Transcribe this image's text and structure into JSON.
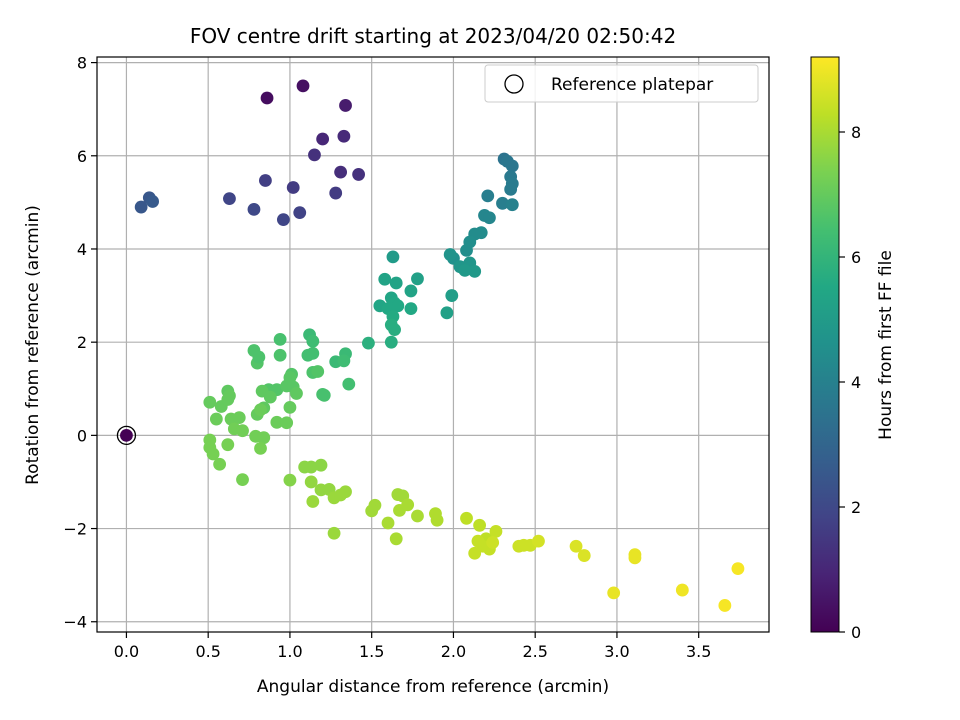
{
  "chart_data": {
    "type": "scatter",
    "title": "FOV centre drift starting at 2023/04/20 02:50:42",
    "xlabel": "Angular distance from reference (arcmin)",
    "ylabel": "Rotation from reference (arcmin)",
    "xlim": [
      -0.18,
      3.93
    ],
    "ylim": [
      -4.22,
      8.12
    ],
    "xticks": [
      "0.0",
      "0.5",
      "1.0",
      "1.5",
      "2.0",
      "2.5",
      "3.0",
      "3.5"
    ],
    "yticks": [
      "−4",
      "−2",
      "0",
      "2",
      "4",
      "6",
      "8"
    ],
    "grid": true,
    "legend": {
      "position": "top-right",
      "entries": [
        "Reference platepar"
      ]
    },
    "colorbar": {
      "label": "Hours from first FF file",
      "colormap": "viridis",
      "range": [
        0,
        9.2
      ],
      "ticks": [
        "0",
        "2",
        "4",
        "6",
        "8"
      ]
    },
    "reference_point": {
      "x": 0.0,
      "y": 0.0
    },
    "points": [
      [
        0.0,
        0.0,
        0.0
      ],
      [
        0.86,
        7.24,
        0.3
      ],
      [
        1.08,
        7.5,
        0.4
      ],
      [
        1.34,
        7.08,
        0.7
      ],
      [
        1.15,
        6.02,
        1.3
      ],
      [
        1.2,
        6.36,
        1.0
      ],
      [
        1.33,
        6.42,
        1.1
      ],
      [
        1.31,
        5.65,
        1.2
      ],
      [
        1.42,
        5.6,
        1.3
      ],
      [
        0.85,
        5.47,
        1.7
      ],
      [
        1.02,
        5.32,
        1.6
      ],
      [
        1.28,
        5.2,
        1.6
      ],
      [
        0.63,
        5.08,
        1.9
      ],
      [
        0.78,
        4.85,
        2.0
      ],
      [
        0.96,
        4.63,
        1.9
      ],
      [
        1.06,
        4.78,
        1.8
      ],
      [
        0.09,
        4.9,
        2.5
      ],
      [
        0.14,
        5.1,
        2.5
      ],
      [
        0.16,
        5.02,
        2.6
      ],
      [
        2.31,
        5.93,
        3.5
      ],
      [
        2.33,
        5.88,
        3.6
      ],
      [
        2.36,
        5.78,
        3.6
      ],
      [
        2.35,
        5.55,
        3.7
      ],
      [
        2.36,
        5.4,
        3.8
      ],
      [
        2.35,
        5.28,
        3.8
      ],
      [
        2.21,
        5.14,
        3.9
      ],
      [
        2.3,
        4.98,
        3.9
      ],
      [
        2.36,
        4.95,
        4.0
      ],
      [
        2.19,
        4.72,
        4.2
      ],
      [
        2.22,
        4.67,
        4.2
      ],
      [
        2.17,
        4.35,
        4.4
      ],
      [
        2.13,
        4.32,
        4.4
      ],
      [
        2.1,
        4.15,
        4.5
      ],
      [
        2.08,
        3.97,
        4.5
      ],
      [
        2.0,
        3.8,
        4.6
      ],
      [
        1.98,
        3.88,
        4.7
      ],
      [
        2.04,
        3.62,
        4.8
      ],
      [
        2.1,
        3.7,
        4.8
      ],
      [
        2.13,
        3.52,
        4.9
      ],
      [
        2.07,
        3.54,
        4.9
      ],
      [
        1.63,
        3.83,
        5.0
      ],
      [
        1.58,
        3.35,
        5.3
      ],
      [
        1.65,
        3.27,
        5.3
      ],
      [
        1.78,
        3.36,
        5.2
      ],
      [
        1.74,
        3.1,
        5.3
      ],
      [
        1.62,
        2.95,
        5.4
      ],
      [
        1.64,
        2.84,
        5.5
      ],
      [
        1.66,
        2.78,
        5.5
      ],
      [
        1.55,
        2.78,
        5.4
      ],
      [
        1.6,
        2.72,
        5.5
      ],
      [
        1.74,
        2.72,
        5.5
      ],
      [
        1.63,
        2.55,
        5.6
      ],
      [
        1.62,
        2.37,
        5.7
      ],
      [
        1.64,
        2.27,
        5.7
      ],
      [
        1.62,
        2.0,
        5.7
      ],
      [
        1.48,
        1.98,
        5.8
      ],
      [
        1.99,
        3.0,
        5.1
      ],
      [
        1.96,
        2.63,
        5.2
      ],
      [
        1.34,
        1.75,
        6.2
      ],
      [
        1.28,
        1.58,
        6.2
      ],
      [
        1.33,
        1.6,
        6.3
      ],
      [
        1.36,
        1.1,
        6.4
      ],
      [
        1.2,
        0.88,
        6.5
      ],
      [
        1.21,
        0.86,
        6.5
      ],
      [
        1.12,
        2.16,
        6.2
      ],
      [
        1.14,
        2.02,
        6.3
      ],
      [
        1.11,
        1.72,
        6.4
      ],
      [
        1.14,
        1.76,
        6.4
      ],
      [
        0.94,
        2.06,
        6.5
      ],
      [
        0.78,
        1.82,
        6.6
      ],
      [
        0.8,
        1.55,
        6.7
      ],
      [
        0.81,
        1.68,
        6.6
      ],
      [
        0.94,
        1.72,
        6.6
      ],
      [
        1.14,
        1.35,
        6.6
      ],
      [
        1.17,
        1.37,
        6.7
      ],
      [
        1.01,
        1.31,
        6.7
      ],
      [
        1.0,
        1.24,
        6.8
      ],
      [
        0.87,
        0.98,
        6.7
      ],
      [
        0.92,
        0.98,
        6.7
      ],
      [
        0.98,
        1.06,
        6.8
      ],
      [
        1.02,
        1.04,
        6.8
      ],
      [
        0.83,
        0.95,
        6.9
      ],
      [
        1.04,
        0.9,
        6.9
      ],
      [
        0.84,
        0.59,
        6.9
      ],
      [
        0.88,
        0.82,
        6.9
      ],
      [
        0.62,
        0.95,
        6.9
      ],
      [
        0.63,
        0.85,
        7.0
      ],
      [
        0.58,
        0.62,
        7.0
      ],
      [
        0.62,
        0.77,
        7.0
      ],
      [
        0.51,
        0.71,
        7.0
      ],
      [
        0.55,
        0.35,
        7.1
      ],
      [
        0.64,
        0.35,
        7.1
      ],
      [
        0.69,
        0.38,
        7.1
      ],
      [
        0.8,
        0.45,
        7.0
      ],
      [
        0.82,
        0.55,
        7.1
      ],
      [
        1.0,
        0.6,
        7.0
      ],
      [
        0.92,
        0.28,
        7.1
      ],
      [
        0.98,
        0.27,
        7.1
      ],
      [
        0.66,
        0.14,
        7.2
      ],
      [
        0.71,
        0.1,
        7.2
      ],
      [
        0.79,
        -0.02,
        7.2
      ],
      [
        0.84,
        -0.05,
        7.2
      ],
      [
        0.82,
        -0.28,
        7.3
      ],
      [
        0.51,
        -0.1,
        7.3
      ],
      [
        0.51,
        -0.26,
        7.3
      ],
      [
        0.53,
        -0.4,
        7.3
      ],
      [
        0.62,
        -0.2,
        7.3
      ],
      [
        0.57,
        -0.62,
        7.3
      ],
      [
        0.71,
        -0.95,
        7.3
      ],
      [
        1.0,
        -0.96,
        7.5
      ],
      [
        1.09,
        -0.68,
        7.6
      ],
      [
        1.13,
        -0.68,
        7.6
      ],
      [
        1.19,
        -0.64,
        7.6
      ],
      [
        1.13,
        -1.0,
        7.7
      ],
      [
        1.19,
        -1.17,
        7.7
      ],
      [
        1.24,
        -1.16,
        7.7
      ],
      [
        1.27,
        -1.34,
        7.8
      ],
      [
        1.31,
        -1.28,
        7.8
      ],
      [
        1.34,
        -1.21,
        7.8
      ],
      [
        1.14,
        -1.42,
        7.8
      ],
      [
        1.27,
        -2.1,
        7.8
      ],
      [
        1.52,
        -1.5,
        7.9
      ],
      [
        1.5,
        -1.62,
        7.9
      ],
      [
        1.66,
        -1.27,
        7.9
      ],
      [
        1.69,
        -1.3,
        7.9
      ],
      [
        1.67,
        -1.61,
        8.0
      ],
      [
        1.72,
        -1.49,
        8.0
      ],
      [
        1.78,
        -1.73,
        8.0
      ],
      [
        1.6,
        -1.88,
        8.0
      ],
      [
        1.65,
        -2.22,
        8.0
      ],
      [
        1.89,
        -1.68,
        8.1
      ],
      [
        1.9,
        -1.82,
        8.1
      ],
      [
        2.08,
        -1.78,
        8.3
      ],
      [
        2.16,
        -1.93,
        8.3
      ],
      [
        2.2,
        -2.22,
        8.3
      ],
      [
        2.18,
        -2.38,
        8.4
      ],
      [
        2.22,
        -2.44,
        8.4
      ],
      [
        2.15,
        -2.27,
        8.4
      ],
      [
        2.13,
        -2.53,
        8.4
      ],
      [
        2.26,
        -2.06,
        8.4
      ],
      [
        2.24,
        -2.3,
        8.5
      ],
      [
        2.4,
        -2.38,
        8.5
      ],
      [
        2.43,
        -2.36,
        8.5
      ],
      [
        2.47,
        -2.36,
        8.5
      ],
      [
        2.52,
        -2.27,
        8.6
      ],
      [
        2.75,
        -2.38,
        8.7
      ],
      [
        2.8,
        -2.58,
        8.7
      ],
      [
        2.98,
        -3.38,
        8.9
      ],
      [
        3.11,
        -2.56,
        8.9
      ],
      [
        3.11,
        -2.63,
        8.9
      ],
      [
        3.4,
        -3.32,
        9.0
      ],
      [
        3.66,
        -3.65,
        9.1
      ],
      [
        3.74,
        -2.86,
        9.1
      ]
    ]
  }
}
